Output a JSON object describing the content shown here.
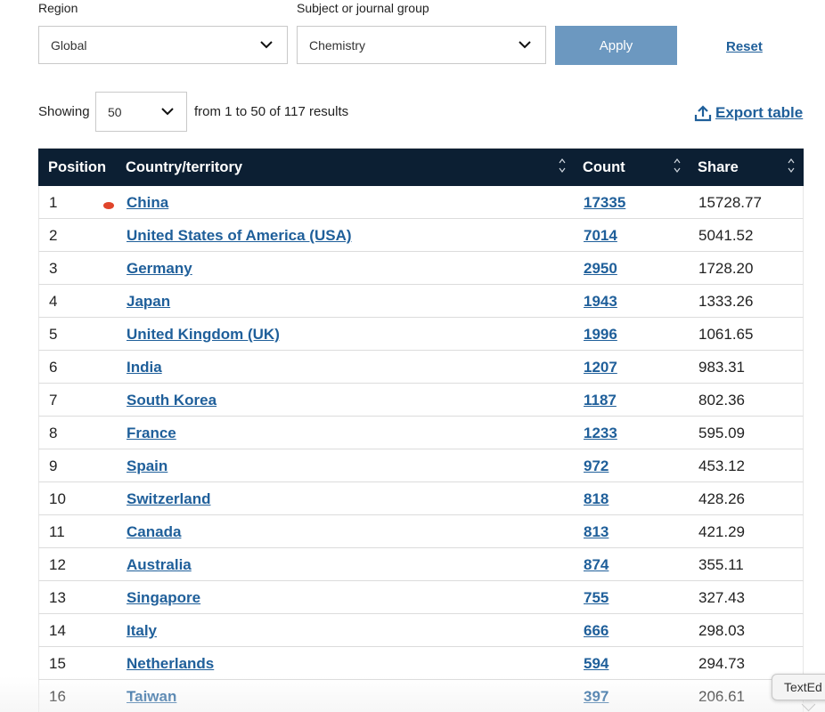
{
  "filters": {
    "region_label": "Region",
    "region_value": "Global",
    "subject_label": "Subject or journal group",
    "subject_value": "Chemistry",
    "apply_label": "Apply",
    "reset_label": "Reset"
  },
  "pagination": {
    "showing_label": "Showing",
    "page_size": "50",
    "summary": "from 1 to 50 of 117 results"
  },
  "export_label": "Export table",
  "table": {
    "headers": {
      "position": "Position",
      "country": "Country/territory",
      "count": "Count",
      "share": "Share"
    },
    "rows": [
      {
        "position": "1",
        "country": "China",
        "count": "17335",
        "share": "15728.77"
      },
      {
        "position": "2",
        "country": "United States of America (USA)",
        "count": "7014",
        "share": "5041.52"
      },
      {
        "position": "3",
        "country": "Germany",
        "count": "2950",
        "share": "1728.20"
      },
      {
        "position": "4",
        "country": "Japan",
        "count": "1943",
        "share": "1333.26"
      },
      {
        "position": "5",
        "country": "United Kingdom (UK)",
        "count": "1996",
        "share": "1061.65"
      },
      {
        "position": "6",
        "country": "India",
        "count": "1207",
        "share": "983.31"
      },
      {
        "position": "7",
        "country": "South Korea",
        "count": "1187",
        "share": "802.36"
      },
      {
        "position": "8",
        "country": "France",
        "count": "1233",
        "share": "595.09"
      },
      {
        "position": "9",
        "country": "Spain",
        "count": "972",
        "share": "453.12"
      },
      {
        "position": "10",
        "country": "Switzerland",
        "count": "818",
        "share": "428.26"
      },
      {
        "position": "11",
        "country": "Canada",
        "count": "813",
        "share": "421.29"
      },
      {
        "position": "12",
        "country": "Australia",
        "count": "874",
        "share": "355.11"
      },
      {
        "position": "13",
        "country": "Singapore",
        "count": "755",
        "share": "327.43"
      },
      {
        "position": "14",
        "country": "Italy",
        "count": "666",
        "share": "298.03"
      },
      {
        "position": "15",
        "country": "Netherlands",
        "count": "594",
        "share": "294.73"
      },
      {
        "position": "16",
        "country": "Taiwan",
        "count": "397",
        "share": "206.61"
      }
    ]
  },
  "tooltip_text": "TextEd",
  "colors": {
    "header_bg": "#0c1f33",
    "link": "#1f5f9a",
    "apply_bg": "#6c98c0",
    "marker": "#e0452b"
  },
  "icons": [
    "chevron-down-icon",
    "upload-icon",
    "sort-icon"
  ]
}
